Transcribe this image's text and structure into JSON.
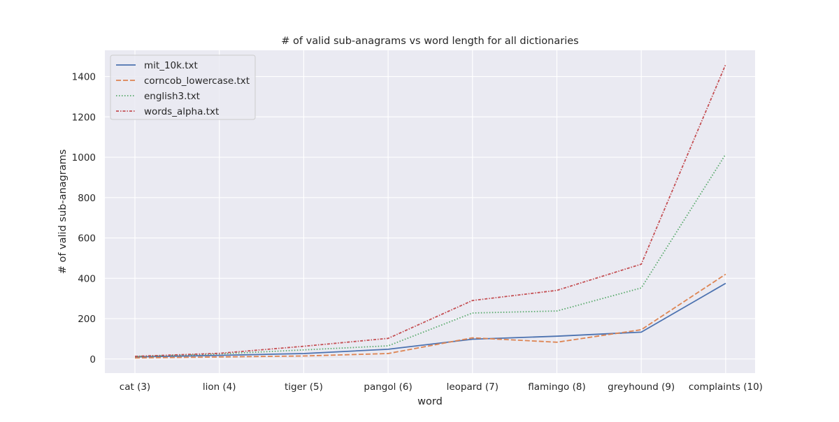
{
  "chart_data": {
    "type": "line",
    "title": "# of valid sub-anagrams vs word length for all dictionaries",
    "xlabel": "word",
    "ylabel": "# of valid sub-anagrams",
    "categories": [
      "cat (3)",
      "lion (4)",
      "tiger (5)",
      "pangol (6)",
      "leopard (7)",
      "flamingo (8)",
      "greyhound (9)",
      "complaints (10)"
    ],
    "ylim": [
      -70,
      1530
    ],
    "yticks": [
      0,
      200,
      400,
      600,
      800,
      1000,
      1200,
      1400
    ],
    "grid": true,
    "legend_position": "upper-left",
    "background_color": "#eaeaf2",
    "series": [
      {
        "name": "mit_10k.txt",
        "color": "#4c72b0",
        "dash": "solid",
        "values": [
          10,
          18,
          27,
          48,
          98,
          113,
          133,
          375
        ]
      },
      {
        "name": "corncob_lowercase.txt",
        "color": "#dd8452",
        "dash": "dashed",
        "values": [
          5,
          10,
          15,
          27,
          105,
          83,
          145,
          420
        ]
      },
      {
        "name": "english3.txt",
        "color": "#55a868",
        "dash": "dotted",
        "values": [
          12,
          25,
          45,
          65,
          228,
          238,
          352,
          1015
        ]
      },
      {
        "name": "words_alpha.txt",
        "color": "#c44e52",
        "dash": "dashdot",
        "values": [
          13,
          28,
          63,
          102,
          290,
          340,
          470,
          1460
        ]
      }
    ]
  }
}
